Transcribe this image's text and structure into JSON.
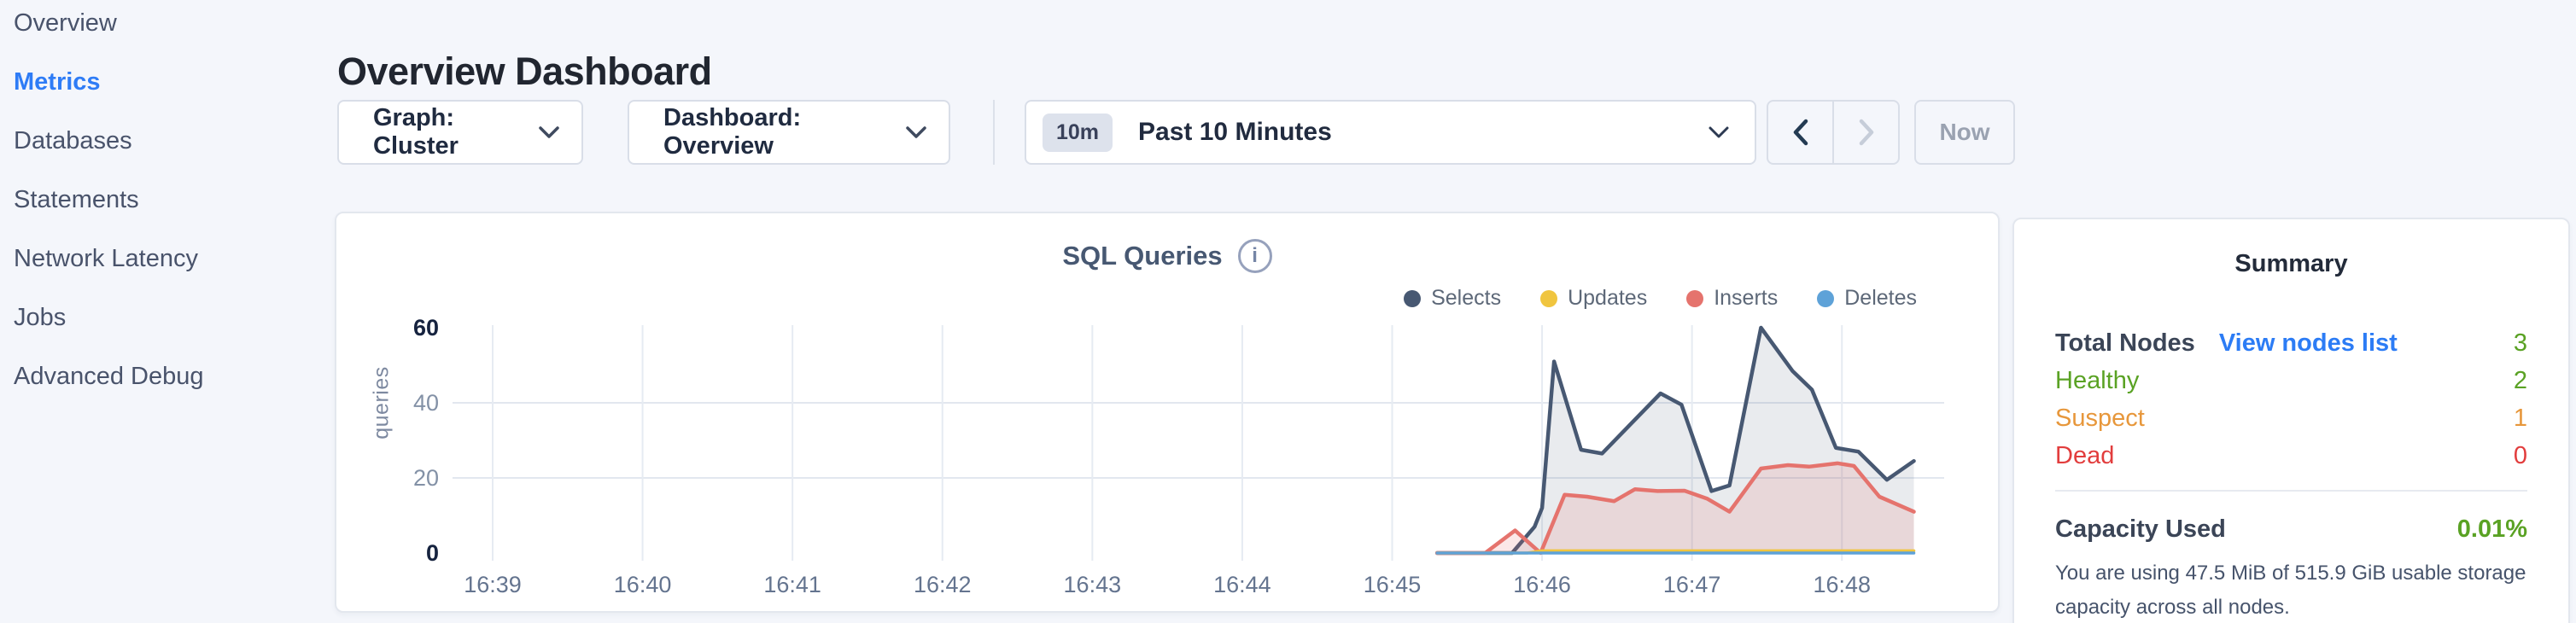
{
  "sidebar": {
    "items": [
      {
        "label": "Overview",
        "active": false
      },
      {
        "label": "Metrics",
        "active": true
      },
      {
        "label": "Databases",
        "active": false
      },
      {
        "label": "Statements",
        "active": false
      },
      {
        "label": "Network Latency",
        "active": false
      },
      {
        "label": "Jobs",
        "active": false
      },
      {
        "label": "Advanced Debug",
        "active": false
      }
    ]
  },
  "header": {
    "title": "Overview Dashboard"
  },
  "toolbar": {
    "graph_dropdown_label": "Graph: Cluster",
    "dashboard_dropdown_label": "Dashboard: Overview",
    "time_badge": "10m",
    "time_label": "Past 10 Minutes",
    "now_label": "Now"
  },
  "icons": {
    "info_glyph": "i"
  },
  "chart_data": {
    "type": "area",
    "title": "SQL Queries",
    "ylabel": "queries",
    "ylim": [
      0,
      60
    ],
    "yticks": [
      0,
      20,
      40,
      60
    ],
    "x_ticks": [
      "16:39",
      "16:40",
      "16:41",
      "16:42",
      "16:43",
      "16:44",
      "16:45",
      "16:46",
      "16:47",
      "16:48"
    ],
    "x_note": "points are [minutes after 16:39, queries]; data begins ~16:45.3 and ends ~16:48.5",
    "legend_position": "top-right",
    "grid": {
      "horizontal_at": [
        20,
        40
      ],
      "vertical_at_every_tick": true
    },
    "series": [
      {
        "name": "Selects",
        "color": "#475872",
        "fill": "rgba(71,88,114,0.12)",
        "points": [
          [
            6.3,
            0
          ],
          [
            6.8,
            0
          ],
          [
            6.95,
            7
          ],
          [
            7.0,
            12
          ],
          [
            7.08,
            51
          ],
          [
            7.26,
            27.5
          ],
          [
            7.4,
            26.5
          ],
          [
            7.79,
            42.5
          ],
          [
            7.93,
            39.5
          ],
          [
            8.13,
            16.5
          ],
          [
            8.25,
            18
          ],
          [
            8.46,
            60
          ],
          [
            8.67,
            48.5
          ],
          [
            8.8,
            43.5
          ],
          [
            8.96,
            28
          ],
          [
            9.11,
            27
          ],
          [
            9.3,
            19.5
          ],
          [
            9.48,
            24.5
          ]
        ]
      },
      {
        "name": "Updates",
        "color": "#f0c53f",
        "points": [
          [
            6.3,
            0
          ],
          [
            6.9,
            0
          ],
          [
            7.0,
            0.6
          ],
          [
            9.48,
            0.6
          ]
        ]
      },
      {
        "name": "Inserts",
        "color": "#e5736d",
        "fill": "rgba(229,115,109,0.16)",
        "points": [
          [
            6.3,
            0
          ],
          [
            6.62,
            0
          ],
          [
            6.82,
            6
          ],
          [
            6.99,
            0
          ],
          [
            7.15,
            15.5
          ],
          [
            7.3,
            15
          ],
          [
            7.48,
            13.8
          ],
          [
            7.62,
            17
          ],
          [
            7.77,
            16.5
          ],
          [
            7.95,
            16.6
          ],
          [
            8.1,
            14.5
          ],
          [
            8.25,
            11
          ],
          [
            8.46,
            22.5
          ],
          [
            8.64,
            23.4
          ],
          [
            8.78,
            23
          ],
          [
            8.97,
            23.9
          ],
          [
            9.08,
            23.2
          ],
          [
            9.25,
            15
          ],
          [
            9.48,
            11
          ]
        ]
      },
      {
        "name": "Deletes",
        "color": "#5ea2d8",
        "points": [
          [
            6.3,
            0
          ],
          [
            9.48,
            0
          ]
        ]
      }
    ]
  },
  "summary": {
    "title": "Summary",
    "rows": [
      {
        "label": "Total Nodes",
        "strong": true,
        "label_color": "#3b4557",
        "link": "View nodes list",
        "value": "3",
        "value_color": "#5aa224"
      },
      {
        "label": "Healthy",
        "strong": false,
        "label_color": "#5aa224",
        "link": null,
        "value": "2",
        "value_color": "#5aa224"
      },
      {
        "label": "Suspect",
        "strong": false,
        "label_color": "#e7973b",
        "link": null,
        "value": "1",
        "value_color": "#e7973b"
      },
      {
        "label": "Dead",
        "strong": false,
        "label_color": "#e23d3d",
        "link": null,
        "value": "0",
        "value_color": "#e23d3d"
      }
    ],
    "capacity_label": "Capacity Used",
    "capacity_value": "0.01%",
    "capacity_value_color": "#5aa224",
    "capacity_description": "You are using 47.5 MiB of 515.9 GiB usable storage capacity across all nodes."
  }
}
